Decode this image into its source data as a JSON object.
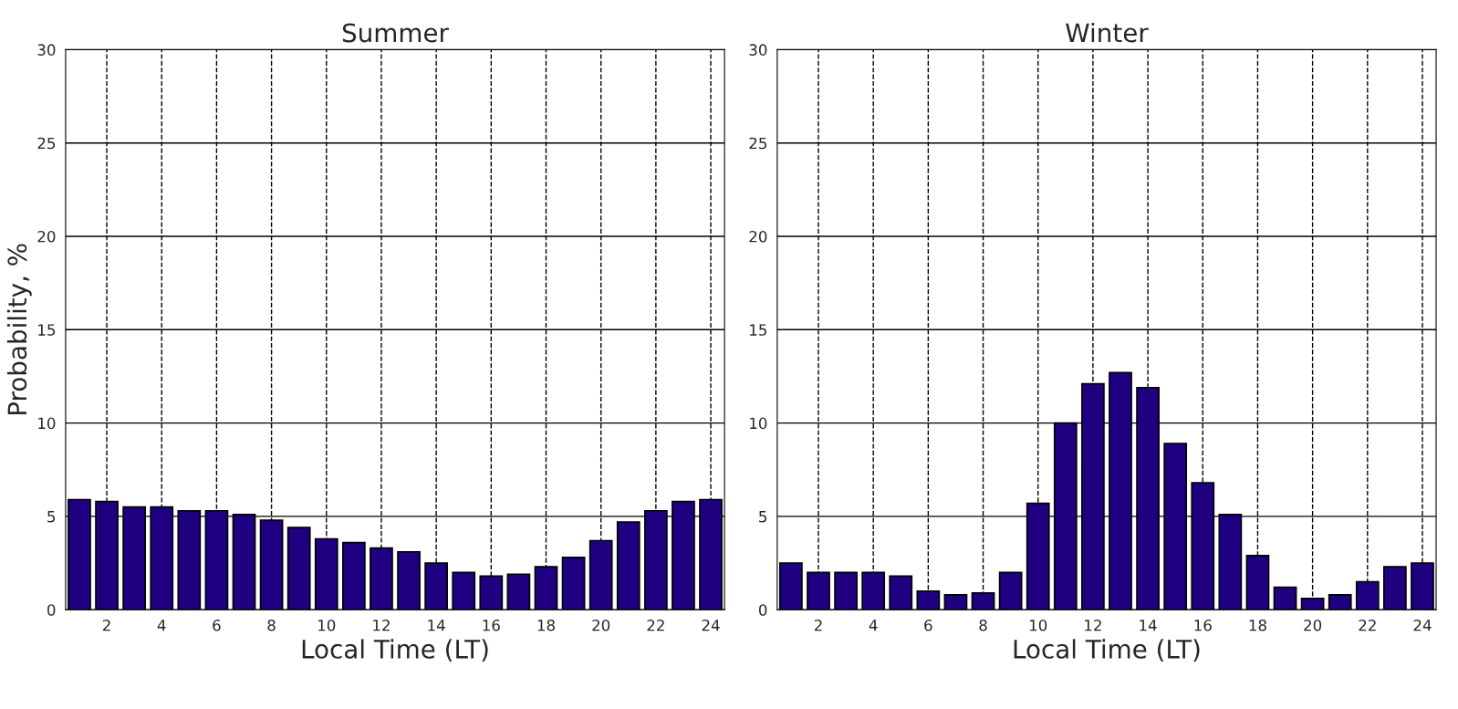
{
  "chart_data": [
    {
      "type": "bar",
      "title": "Summer",
      "xlabel": "Local Time (LT)",
      "ylabel": "Probability, %",
      "x": [
        1,
        2,
        3,
        4,
        5,
        6,
        7,
        8,
        9,
        10,
        11,
        12,
        13,
        14,
        15,
        16,
        17,
        18,
        19,
        20,
        21,
        22,
        23,
        24
      ],
      "series": [
        {
          "color": "#1f0080",
          "values": [
            5.9,
            5.8,
            5.5,
            5.5,
            5.3,
            5.3,
            5.1,
            4.8,
            4.4,
            3.8,
            3.6,
            3.3,
            3.1,
            2.5,
            2.0,
            1.8,
            1.9,
            2.3,
            2.8,
            3.7,
            4.7,
            5.3,
            5.8,
            5.9
          ]
        }
      ],
      "xlim": [
        0.5,
        24.5
      ],
      "xticks": [
        2,
        4,
        6,
        8,
        10,
        12,
        14,
        16,
        18,
        20,
        22,
        24
      ],
      "ylim": [
        0,
        30
      ],
      "yticks": [
        0,
        5,
        10,
        15,
        20,
        25,
        30
      ],
      "grid": true
    },
    {
      "type": "bar",
      "title": "Winter",
      "xlabel": "Local Time (LT)",
      "x": [
        1,
        2,
        3,
        4,
        5,
        6,
        7,
        8,
        9,
        10,
        11,
        12,
        13,
        14,
        15,
        16,
        17,
        18,
        19,
        20,
        21,
        22,
        23,
        24
      ],
      "series": [
        {
          "color": "#1f0080",
          "values": [
            2.5,
            2.0,
            2.0,
            2.0,
            1.8,
            1.0,
            0.8,
            0.9,
            2.0,
            5.7,
            10.0,
            12.1,
            12.7,
            11.9,
            8.9,
            6.8,
            5.1,
            2.9,
            1.2,
            0.6,
            0.8,
            1.5,
            2.3,
            2.5
          ]
        }
      ],
      "xlim": [
        0.5,
        24.5
      ],
      "xticks": [
        2,
        4,
        6,
        8,
        10,
        12,
        14,
        16,
        18,
        20,
        22,
        24
      ],
      "ylim": [
        0,
        30
      ],
      "yticks": [
        0,
        5,
        10,
        15,
        20,
        25,
        30
      ],
      "grid": true
    }
  ]
}
